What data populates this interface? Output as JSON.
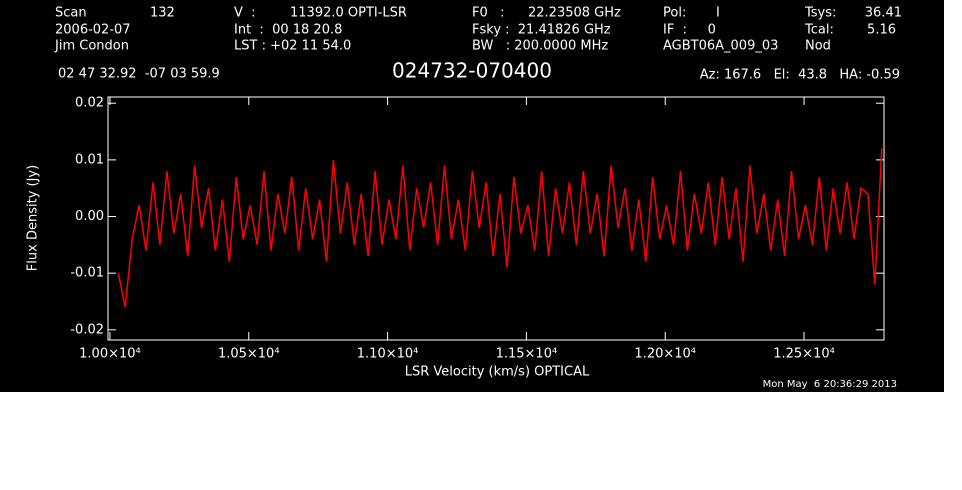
{
  "header": {
    "row1": [
      "Scan",
      "132",
      "V  :",
      "11392.0 OPTI-LSR",
      "F0   :",
      "22.23508 GHz",
      "Pol:",
      "I",
      "Tsys:",
      "36.41"
    ],
    "row2": [
      "2006-02-07",
      "Int  :  00 18 20.8",
      "Fsky :  21.41826 GHz",
      "IF  :     0",
      "Tcal:",
      "5.16"
    ],
    "row3": [
      "Jim Condon",
      "LST : +02 11 54.0",
      "BW   : 200.0000 MHz",
      "AGBT06A_009_03",
      "Nod"
    ],
    "position": "02 47 32.92  -07 03 59.9",
    "pointing": "Az: 167.6   El:  43.8   HA: -0.59",
    "timestamp": "Mon May  6 20:36:29 2013"
  },
  "chart_data": {
    "type": "line",
    "title": "024732-070400",
    "x_label": "LSR Velocity (km/s) OPTICAL",
    "y_label": "Flux Density (Jy)",
    "xlim": [
      9993,
      12788
    ],
    "ylim": [
      -0.0218,
      0.0211
    ],
    "xticks": [
      {
        "value": 10000,
        "label": "1.00×10⁴"
      },
      {
        "value": 10500,
        "label": "1.05×10⁴"
      },
      {
        "value": 11000,
        "label": "1.10×10⁴"
      },
      {
        "value": 11500,
        "label": "1.15×10⁴"
      },
      {
        "value": 12000,
        "label": "1.20×10⁴"
      },
      {
        "value": 12500,
        "label": "1.25×10⁴"
      }
    ],
    "yticks": [
      -0.02,
      -0.01,
      {
        "value": 0,
        "label": "0.00"
      },
      0.01,
      0.02
    ],
    "series": [
      {
        "color": "#ff0000",
        "x": [
          10030,
          10055,
          10080,
          10105,
          10130,
          10155,
          10180,
          10205,
          10230,
          10255,
          10280,
          10305,
          10330,
          10355,
          10380,
          10405,
          10430,
          10455,
          10480,
          10505,
          10530,
          10555,
          10580,
          10605,
          10630,
          10655,
          10680,
          10705,
          10730,
          10755,
          10780,
          10805,
          10830,
          10855,
          10880,
          10905,
          10930,
          10955,
          10980,
          11005,
          11030,
          11055,
          11080,
          11105,
          11130,
          11155,
          11180,
          11205,
          11230,
          11255,
          11280,
          11305,
          11330,
          11355,
          11380,
          11405,
          11430,
          11455,
          11480,
          11505,
          11530,
          11555,
          11580,
          11605,
          11630,
          11655,
          11680,
          11705,
          11730,
          11755,
          11780,
          11805,
          11830,
          11855,
          11880,
          11905,
          11930,
          11955,
          11980,
          12005,
          12030,
          12055,
          12080,
          12105,
          12130,
          12155,
          12180,
          12205,
          12230,
          12255,
          12280,
          12305,
          12330,
          12355,
          12380,
          12405,
          12430,
          12455,
          12480,
          12505,
          12530,
          12555,
          12580,
          12605,
          12630,
          12655,
          12680,
          12705,
          12730,
          12755,
          12780
        ],
        "values": [
          -0.01,
          -0.016,
          -0.004,
          0.002,
          -0.006,
          0.006,
          -0.005,
          0.008,
          -0.003,
          0.004,
          -0.007,
          0.009,
          -0.002,
          0.005,
          -0.006,
          0.003,
          -0.008,
          0.007,
          -0.004,
          0.002,
          -0.005,
          0.008,
          -0.006,
          0.004,
          -0.003,
          0.007,
          -0.006,
          0.005,
          -0.004,
          0.003,
          -0.008,
          0.01,
          -0.003,
          0.006,
          -0.005,
          0.004,
          -0.007,
          0.008,
          -0.005,
          0.003,
          -0.004,
          0.009,
          -0.006,
          0.005,
          -0.002,
          0.006,
          -0.005,
          0.009,
          -0.004,
          0.003,
          -0.006,
          0.008,
          -0.002,
          0.006,
          -0.007,
          0.004,
          -0.009,
          0.007,
          -0.003,
          0.002,
          -0.006,
          0.008,
          -0.007,
          0.005,
          -0.003,
          0.006,
          -0.005,
          0.008,
          -0.003,
          0.004,
          -0.007,
          0.009,
          -0.002,
          0.005,
          -0.006,
          0.003,
          -0.008,
          0.007,
          -0.004,
          0.002,
          -0.005,
          0.008,
          -0.006,
          0.004,
          -0.003,
          0.006,
          -0.005,
          0.007,
          -0.004,
          0.005,
          -0.008,
          0.009,
          -0.003,
          0.004,
          -0.006,
          0.003,
          -0.007,
          0.008,
          -0.004,
          0.002,
          -0.005,
          0.007,
          -0.006,
          0.005,
          -0.003,
          0.006,
          -0.004,
          0.005,
          0.004,
          -0.012,
          0.012
        ]
      }
    ]
  }
}
